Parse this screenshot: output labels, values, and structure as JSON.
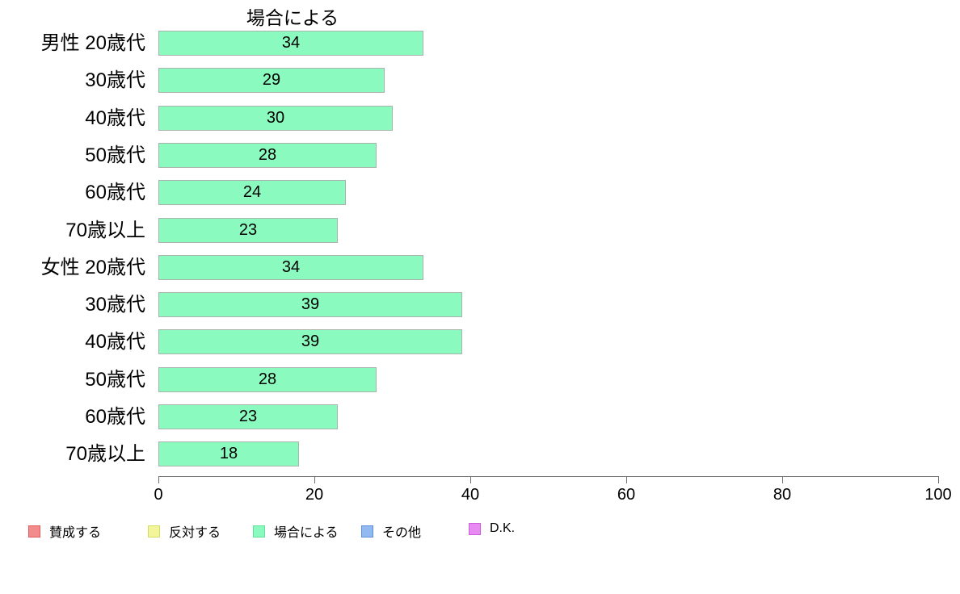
{
  "title": "場合による",
  "chart_data": {
    "type": "bar",
    "orientation": "horizontal",
    "title": "場合による",
    "categories": [
      "男性 20歳代",
      "30歳代",
      "40歳代",
      "50歳代",
      "60歳代",
      "70歳以上",
      "女性 20歳代",
      "30歳代",
      "40歳代",
      "50歳代",
      "60歳代",
      "70歳以上"
    ],
    "values": [
      34,
      29,
      30,
      28,
      24,
      23,
      34,
      39,
      39,
      28,
      23,
      18
    ],
    "series_name": "場合による",
    "xlim": [
      0,
      100
    ],
    "x_ticks": [
      0,
      20,
      40,
      60,
      80,
      100
    ],
    "value_labels_shown": true,
    "grid": false,
    "bar_color": "#8BFABE",
    "bar_border_color": "#A9B3AB",
    "legend_position": "bottom"
  },
  "legend": {
    "items": [
      {
        "label": "賛成する",
        "fill": "#F28B8B",
        "border": "#E25A5A"
      },
      {
        "label": "反対する",
        "fill": "#F3F59A",
        "border": "#D3DC66"
      },
      {
        "label": "場合による",
        "fill": "#8BFABE",
        "border": "#62DE9E"
      },
      {
        "label": "その他",
        "fill": "#90BAF0",
        "border": "#5E8CDE"
      },
      {
        "label": "D.K.",
        "fill": "#E78BF2",
        "border": "#D05CDE"
      }
    ]
  }
}
